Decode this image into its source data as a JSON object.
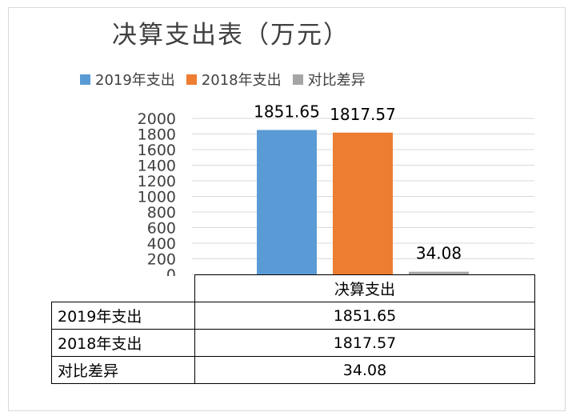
{
  "chart_data": {
    "type": "bar",
    "title": "决算支出表（万元）",
    "categories": [
      "决算支出"
    ],
    "series": [
      {
        "name": "2019年支出",
        "values": [
          1851.65
        ],
        "color": "#5b9bd5"
      },
      {
        "name": "2018年支出",
        "values": [
          1817.57
        ],
        "color": "#ed7d31"
      },
      {
        "name": "对比差异",
        "values": [
          34.08
        ],
        "color": "#a5a5a5"
      }
    ],
    "ylim": [
      0,
      2000
    ],
    "yticks": [
      0,
      200,
      400,
      600,
      800,
      1000,
      1200,
      1400,
      1600,
      1800,
      2000
    ],
    "grid": true,
    "legend_position": "top",
    "data_labels": [
      "1851.65",
      "1817.57",
      "34.08"
    ]
  },
  "table": {
    "header": "决算支出",
    "rows": [
      {
        "label": "2019年支出",
        "value": "1851.65"
      },
      {
        "label": "2018年支出",
        "value": "1817.57"
      },
      {
        "label": "对比差异",
        "value": "34.08"
      }
    ]
  }
}
